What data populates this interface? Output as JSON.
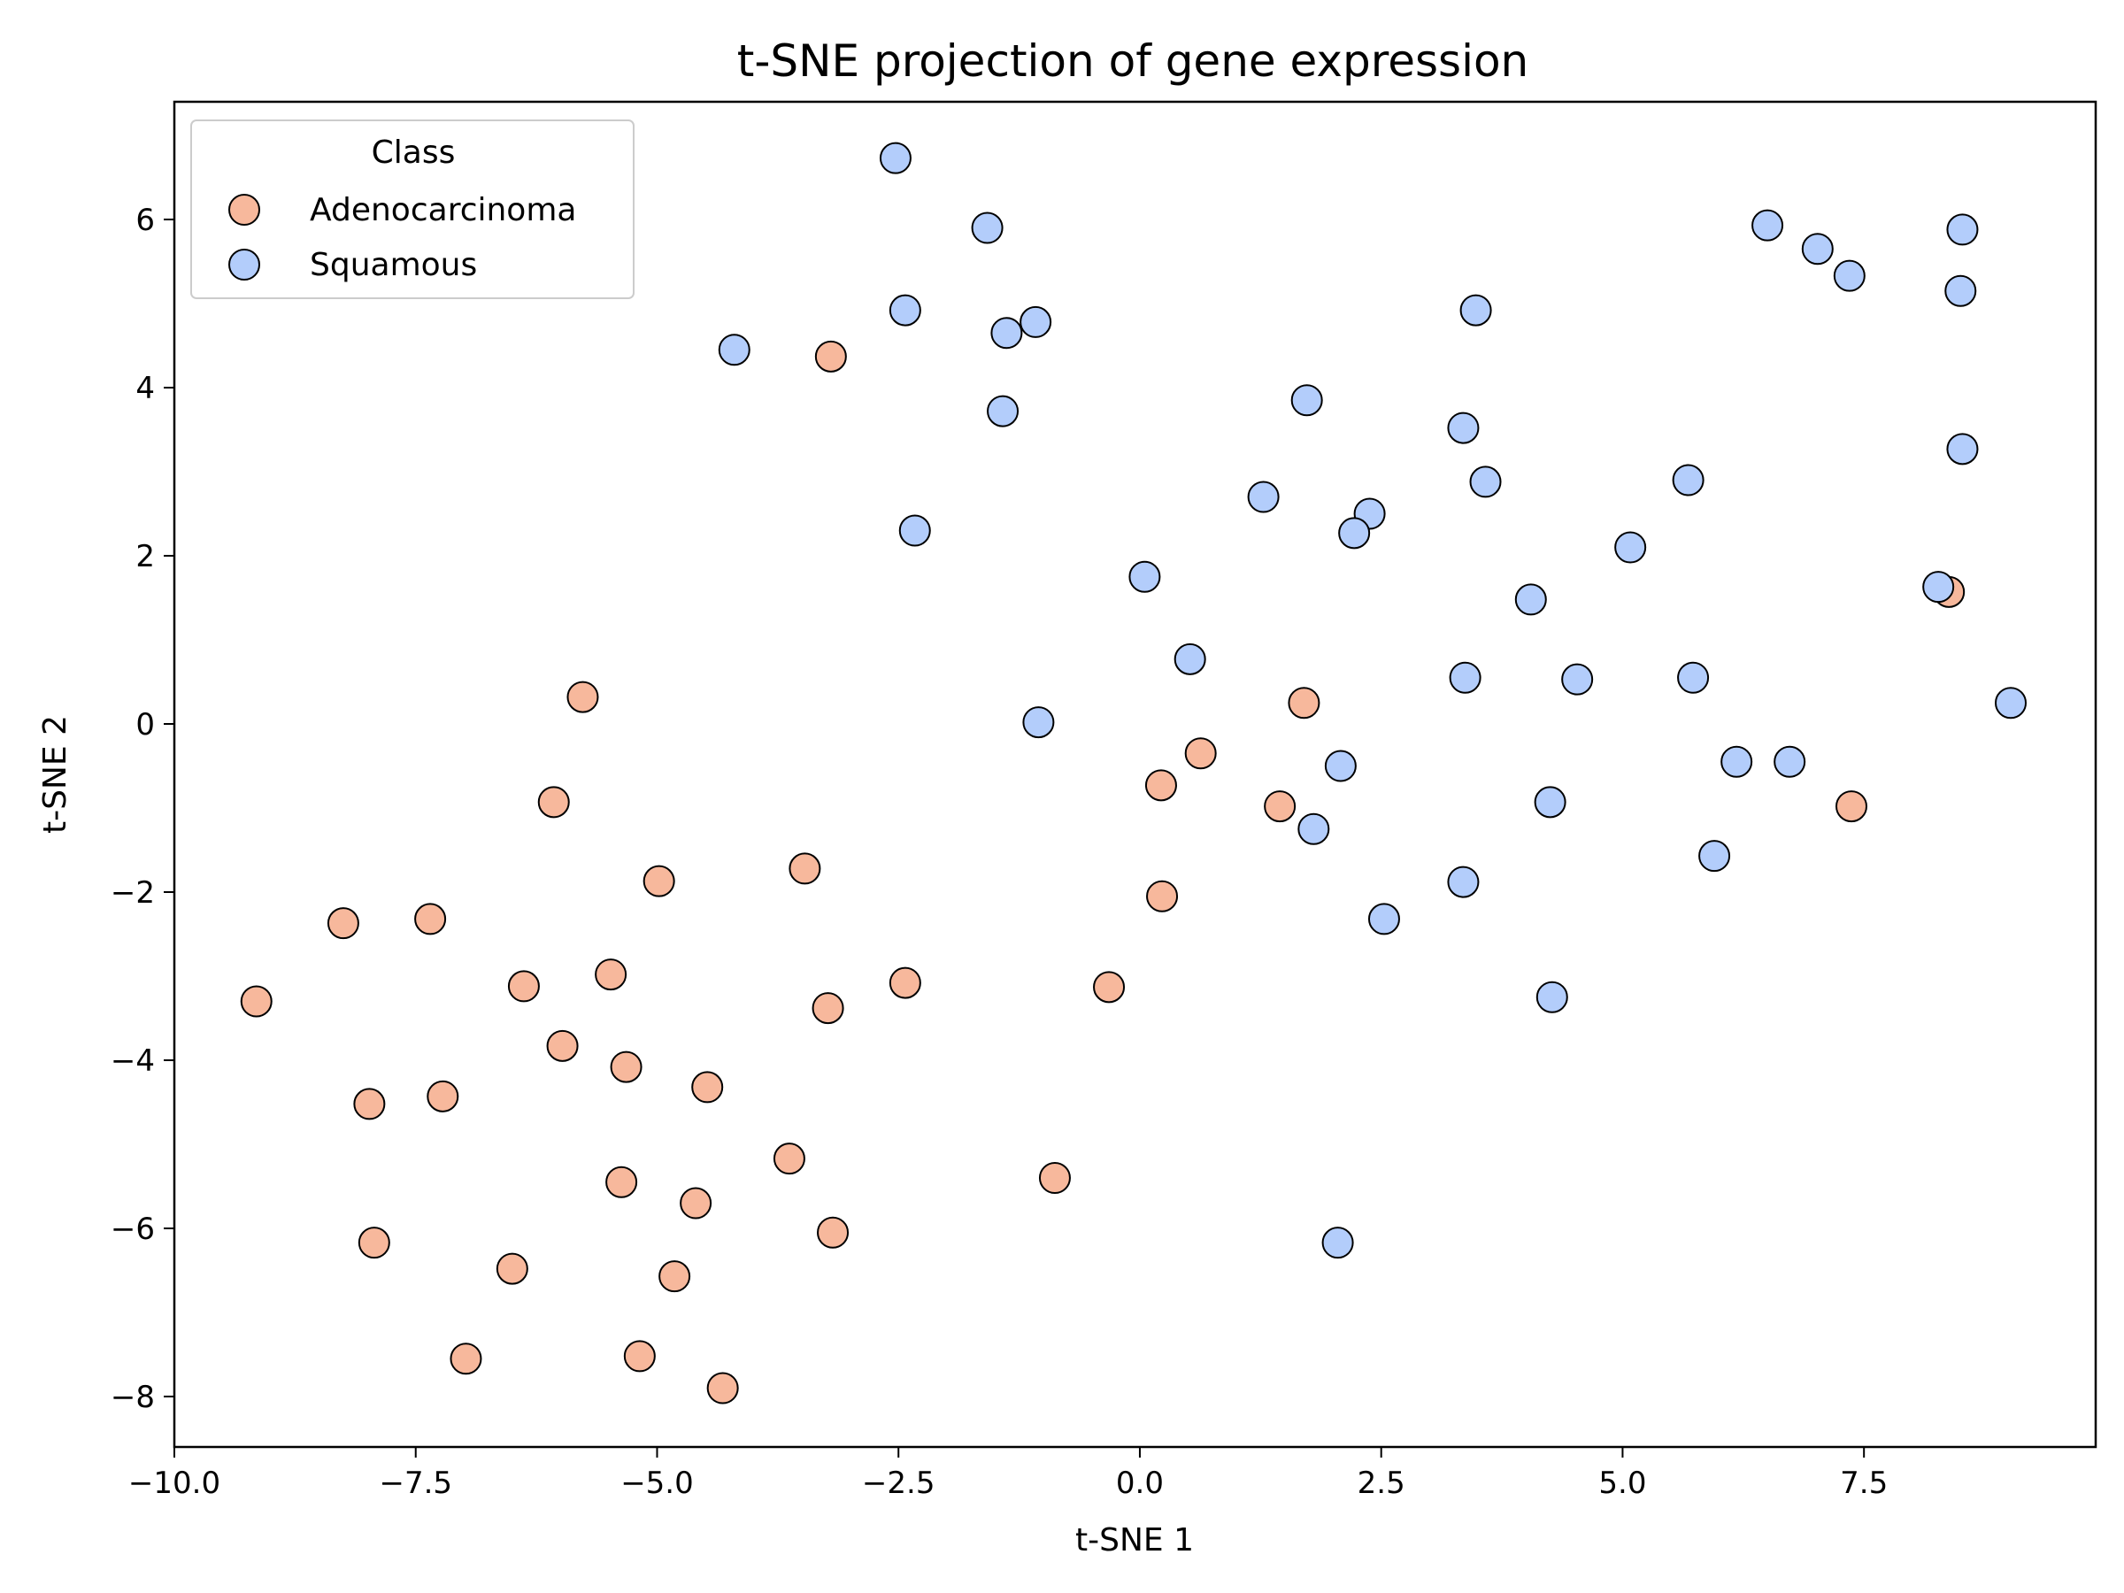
{
  "chart_data": {
    "type": "scatter",
    "title": "t-SNE projection of gene expression",
    "xlabel": "t-SNE 1",
    "ylabel": "t-SNE 2",
    "xlim": [
      -10.0,
      9.9
    ],
    "ylim": [
      -8.6,
      7.4
    ],
    "x_ticks": [
      -10.0,
      -7.5,
      -5.0,
      -2.5,
      0.0,
      2.5,
      5.0,
      7.5
    ],
    "x_tick_labels": [
      "−10.0",
      "−7.5",
      "−5.0",
      "−2.5",
      "0.0",
      "2.5",
      "5.0",
      "7.5"
    ],
    "y_ticks": [
      -8,
      -6,
      -4,
      -2,
      0,
      2,
      4,
      6
    ],
    "y_tick_labels": [
      "−8",
      "−6",
      "−4",
      "−2",
      "0",
      "2",
      "4",
      "6"
    ],
    "grid": false,
    "legend": {
      "title": "Class",
      "placement": "top-left"
    },
    "series": [
      {
        "name": "Adenocarcinoma",
        "color": "#f7b89c",
        "points": [
          [
            -9.15,
            -3.3
          ],
          [
            -8.25,
            -2.37
          ],
          [
            -7.35,
            -2.32
          ],
          [
            -7.98,
            -4.52
          ],
          [
            -7.22,
            -4.43
          ],
          [
            -7.93,
            -6.17
          ],
          [
            -6.98,
            -7.55
          ],
          [
            -6.5,
            -6.48
          ],
          [
            -6.38,
            -3.12
          ],
          [
            -5.98,
            -3.83
          ],
          [
            -6.07,
            -0.93
          ],
          [
            -5.77,
            0.32
          ],
          [
            -5.48,
            -2.98
          ],
          [
            -5.32,
            -4.08
          ],
          [
            -4.98,
            -1.87
          ],
          [
            -5.37,
            -5.45
          ],
          [
            -5.18,
            -7.52
          ],
          [
            -4.82,
            -6.57
          ],
          [
            -4.6,
            -5.7
          ],
          [
            -4.48,
            -4.32
          ],
          [
            -4.32,
            -7.9
          ],
          [
            -3.63,
            -5.17
          ],
          [
            -3.47,
            -1.72
          ],
          [
            -3.23,
            -3.38
          ],
          [
            -3.18,
            -6.05
          ],
          [
            -3.2,
            4.37
          ],
          [
            -2.43,
            -3.08
          ],
          [
            -0.88,
            -5.4
          ],
          [
            -0.32,
            -3.13
          ],
          [
            0.22,
            -0.73
          ],
          [
            0.63,
            -0.35
          ],
          [
            0.23,
            -2.05
          ],
          [
            1.45,
            -0.98
          ],
          [
            1.7,
            0.25
          ],
          [
            7.37,
            -0.98
          ],
          [
            8.38,
            1.57
          ]
        ]
      },
      {
        "name": "Squamous",
        "color": "#b3cdfb",
        "points": [
          [
            -2.53,
            6.73
          ],
          [
            -1.58,
            5.9
          ],
          [
            -2.43,
            4.92
          ],
          [
            -1.38,
            4.65
          ],
          [
            -1.08,
            4.78
          ],
          [
            -4.2,
            4.45
          ],
          [
            -1.42,
            3.72
          ],
          [
            -2.33,
            2.3
          ],
          [
            -1.05,
            0.02
          ],
          [
            0.05,
            1.75
          ],
          [
            0.52,
            0.77
          ],
          [
            1.28,
            2.7
          ],
          [
            1.73,
            3.85
          ],
          [
            2.38,
            2.5
          ],
          [
            2.22,
            2.27
          ],
          [
            2.08,
            -0.5
          ],
          [
            1.8,
            -1.25
          ],
          [
            2.53,
            -2.32
          ],
          [
            2.05,
            -6.17
          ],
          [
            3.35,
            3.52
          ],
          [
            3.48,
            4.92
          ],
          [
            3.58,
            2.88
          ],
          [
            3.37,
            0.55
          ],
          [
            3.35,
            -1.88
          ],
          [
            4.05,
            1.48
          ],
          [
            4.25,
            -0.93
          ],
          [
            4.27,
            -3.25
          ],
          [
            4.53,
            0.53
          ],
          [
            5.08,
            2.1
          ],
          [
            5.68,
            2.9
          ],
          [
            5.73,
            0.55
          ],
          [
            5.95,
            -1.57
          ],
          [
            6.18,
            -0.45
          ],
          [
            6.5,
            5.93
          ],
          [
            6.73,
            -0.45
          ],
          [
            7.02,
            5.65
          ],
          [
            7.35,
            5.33
          ],
          [
            8.27,
            1.63
          ],
          [
            8.52,
            5.88
          ],
          [
            8.5,
            5.15
          ],
          [
            8.52,
            3.27
          ],
          [
            9.02,
            0.25
          ]
        ]
      }
    ]
  }
}
